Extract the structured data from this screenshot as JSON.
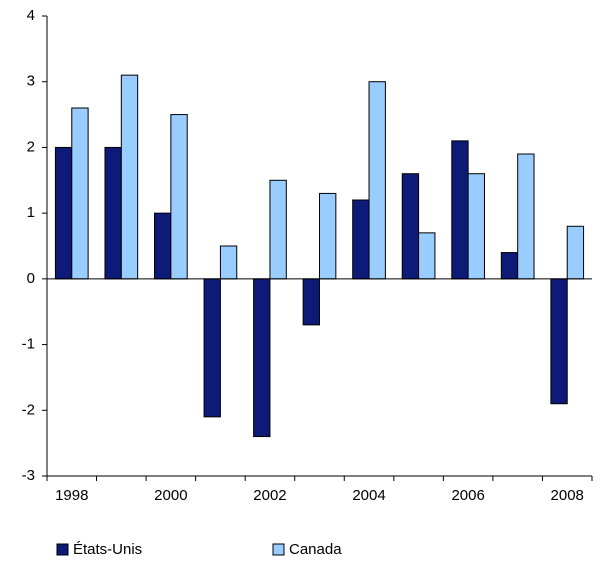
{
  "chart_data": {
    "type": "bar",
    "categories": [
      1998,
      null,
      2000,
      null,
      2002,
      null,
      2004,
      null,
      2006,
      null,
      2008
    ],
    "series": [
      {
        "name": "États-Unis",
        "color": "#0d1a78",
        "values": [
          2.0,
          2.0,
          1.0,
          -2.1,
          -2.4,
          -0.7,
          1.2,
          1.6,
          2.1,
          0.4,
          -1.9
        ]
      },
      {
        "name": "Canada",
        "color": "#99ccff",
        "values": [
          2.6,
          3.1,
          2.5,
          0.5,
          1.5,
          1.3,
          3.0,
          0.7,
          1.6,
          1.9,
          0.8
        ]
      }
    ],
    "ylim": [
      -3,
      4
    ],
    "yticks": [
      -3,
      -2,
      -1,
      0,
      1,
      2,
      3,
      4
    ],
    "legend": "bottom-left"
  }
}
